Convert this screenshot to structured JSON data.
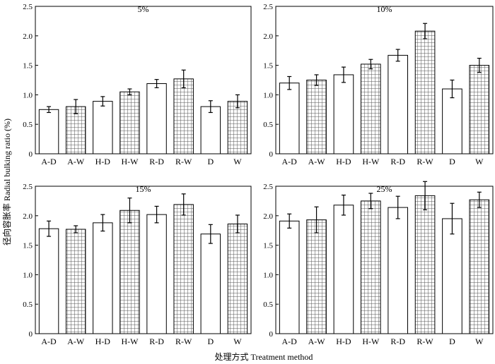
{
  "figure": {
    "ylabel": "径向容胀率 Radial bulking ratio (%)",
    "xlabel": "处理方式 Treatment method"
  },
  "chart_data": [
    {
      "type": "bar",
      "title": "5%",
      "categories": [
        "A-D",
        "A-W",
        "H-D",
        "H-W",
        "R-D",
        "R-W",
        "D",
        "W"
      ],
      "values": [
        0.75,
        0.8,
        0.89,
        1.05,
        1.19,
        1.27,
        0.8,
        0.89
      ],
      "errors": [
        0.05,
        0.12,
        0.08,
        0.05,
        0.07,
        0.15,
        0.1,
        0.11
      ],
      "fill_pattern": [
        "open",
        "grid",
        "open",
        "grid",
        "open",
        "grid",
        "open",
        "grid"
      ],
      "ylim": [
        0,
        2.5
      ],
      "yticks": [
        "0",
        "0.5",
        "1.0",
        "1.5",
        "2.0",
        "2.5"
      ]
    },
    {
      "type": "bar",
      "title": "10%",
      "categories": [
        "A-D",
        "A-W",
        "H-D",
        "H-W",
        "R-D",
        "R-W",
        "D",
        "W"
      ],
      "values": [
        1.2,
        1.25,
        1.34,
        1.52,
        1.67,
        2.08,
        1.1,
        1.5
      ],
      "errors": [
        0.11,
        0.09,
        0.13,
        0.08,
        0.1,
        0.13,
        0.15,
        0.12
      ],
      "fill_pattern": [
        "open",
        "grid",
        "open",
        "grid",
        "open",
        "grid",
        "open",
        "grid"
      ],
      "ylim": [
        0,
        2.5
      ],
      "yticks": [
        "0",
        "0.5",
        "1.0",
        "1.5",
        "2.0",
        "2.5"
      ]
    },
    {
      "type": "bar",
      "title": "15%",
      "categories": [
        "A-D",
        "A-W",
        "H-D",
        "H-W",
        "R-D",
        "R-W",
        "D",
        "W"
      ],
      "values": [
        1.78,
        1.77,
        1.88,
        2.09,
        2.02,
        2.19,
        1.69,
        1.86
      ],
      "errors": [
        0.13,
        0.06,
        0.14,
        0.21,
        0.14,
        0.18,
        0.16,
        0.15
      ],
      "fill_pattern": [
        "open",
        "grid",
        "open",
        "grid",
        "open",
        "grid",
        "open",
        "grid"
      ],
      "ylim": [
        0,
        2.5
      ],
      "yticks": [
        "0",
        "0.5",
        "1.0",
        "1.5",
        "2.0",
        "2.5"
      ]
    },
    {
      "type": "bar",
      "title": "25%",
      "categories": [
        "A-D",
        "A-W",
        "H-D",
        "H-W",
        "R-D",
        "R-W",
        "D",
        "W"
      ],
      "values": [
        1.91,
        1.93,
        2.18,
        2.25,
        2.14,
        2.34,
        1.95,
        2.27
      ],
      "errors": [
        0.12,
        0.22,
        0.17,
        0.13,
        0.19,
        0.24,
        0.26,
        0.13
      ],
      "fill_pattern": [
        "open",
        "grid",
        "open",
        "grid",
        "open",
        "grid",
        "open",
        "grid"
      ],
      "ylim": [
        0,
        2.5
      ],
      "yticks": [
        "0",
        "0.5",
        "1.0",
        "1.5",
        "2.0",
        "2.5"
      ]
    }
  ]
}
